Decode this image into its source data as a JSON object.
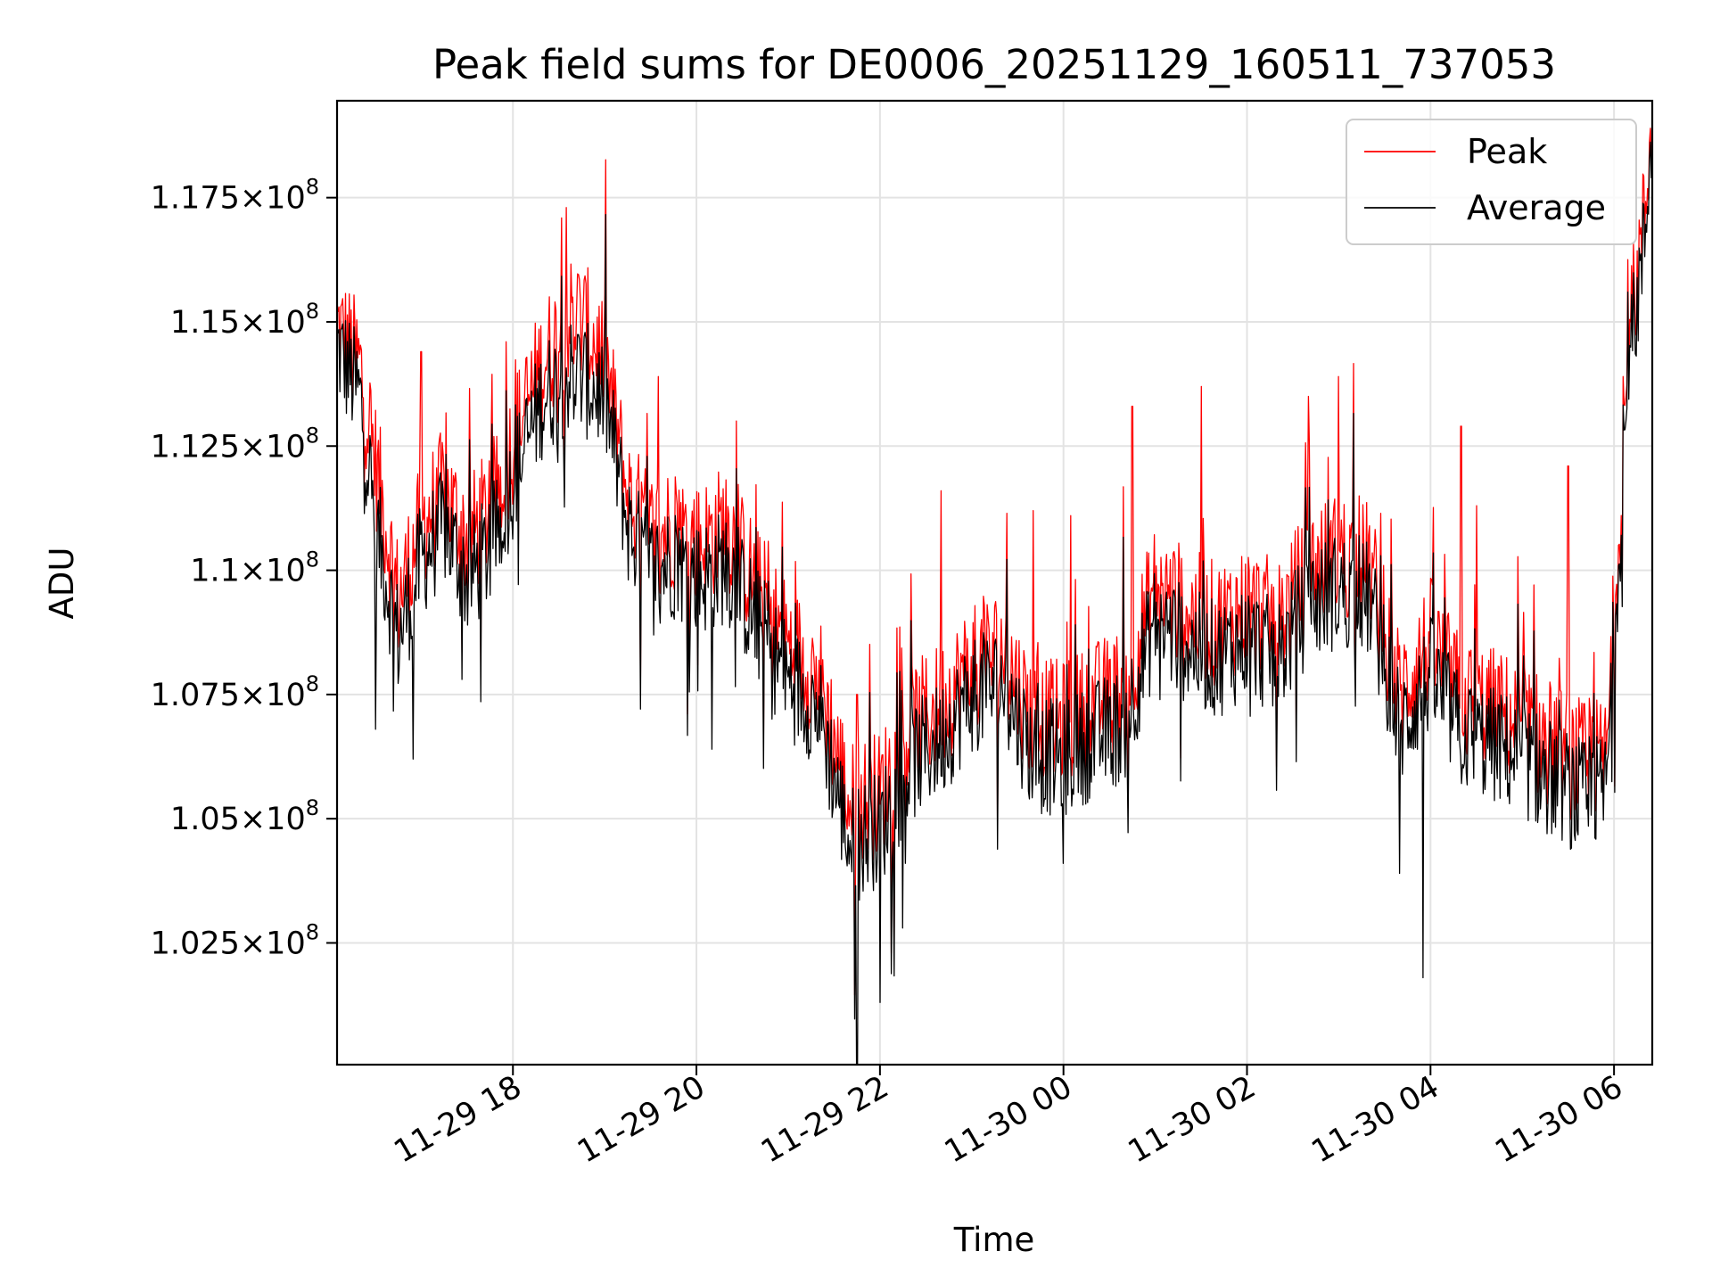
{
  "chart_data": {
    "type": "line",
    "title": "Peak field sums for DE0006_20251129_160511_737053",
    "xlabel": "Time",
    "ylabel": "ADU",
    "x_start": "2025-11-29 16:05",
    "x_end": "2025-11-30 06:25",
    "ylim": [
      100050000,
      119450000
    ],
    "grid": true,
    "legend_position": "top-right",
    "x_ticks": [
      {
        "value": "2025-11-29 18:00",
        "label": "11-29 18"
      },
      {
        "value": "2025-11-29 20:00",
        "label": "11-29 20"
      },
      {
        "value": "2025-11-29 22:00",
        "label": "11-29 22"
      },
      {
        "value": "2025-11-30 00:00",
        "label": "11-30 00"
      },
      {
        "value": "2025-11-30 02:00",
        "label": "11-30 02"
      },
      {
        "value": "2025-11-30 04:00",
        "label": "11-30 04"
      },
      {
        "value": "2025-11-30 06:00",
        "label": "11-30 06"
      }
    ],
    "y_ticks": [
      {
        "value": 102500000,
        "mantissa": "1.025",
        "exponent": "8"
      },
      {
        "value": 105000000,
        "mantissa": "1.05",
        "exponent": "8"
      },
      {
        "value": 107500000,
        "mantissa": "1.075",
        "exponent": "8"
      },
      {
        "value": 110000000,
        "mantissa": "1.1",
        "exponent": "8"
      },
      {
        "value": 112500000,
        "mantissa": "1.125",
        "exponent": "8"
      },
      {
        "value": 115000000,
        "mantissa": "1.15",
        "exponent": "8"
      },
      {
        "value": 117500000,
        "mantissa": "1.175",
        "exponent": "8"
      }
    ],
    "series": [
      {
        "name": "Peak",
        "color": "#ff0000",
        "points": [
          [
            "2025-11-29 16:05",
            114900000
          ],
          [
            "2025-11-29 16:20",
            114100000
          ],
          [
            "2025-11-29 16:30",
            112200000
          ],
          [
            "2025-11-29 16:45",
            109400000
          ],
          [
            "2025-11-29 17:00",
            110900000
          ],
          [
            "2025-11-29 17:15",
            111600000
          ],
          [
            "2025-11-29 17:30",
            110600000
          ],
          [
            "2025-11-29 17:45",
            111200000
          ],
          [
            "2025-11-29 18:00",
            112600000
          ],
          [
            "2025-11-29 18:20",
            114200000
          ],
          [
            "2025-11-29 18:40",
            115200000
          ],
          [
            "2025-11-29 19:00",
            114300000
          ],
          [
            "2025-11-29 19:15",
            111500000
          ],
          [
            "2025-11-29 19:30",
            110700000
          ],
          [
            "2025-11-29 19:45",
            110900000
          ],
          [
            "2025-11-29 20:00",
            110500000
          ],
          [
            "2025-11-29 20:20",
            110900000
          ],
          [
            "2025-11-29 20:40",
            109600000
          ],
          [
            "2025-11-29 21:00",
            108500000
          ],
          [
            "2025-11-29 21:20",
            107900000
          ],
          [
            "2025-11-29 21:40",
            105300000
          ],
          [
            "2025-11-29 22:00",
            105500000
          ],
          [
            "2025-11-29 22:20",
            106800000
          ],
          [
            "2025-11-29 22:40",
            107300000
          ],
          [
            "2025-11-29 23:00",
            108100000
          ],
          [
            "2025-11-29 23:20",
            108400000
          ],
          [
            "2025-11-29 23:40",
            107000000
          ],
          [
            "2025-11-30 00:00",
            106900000
          ],
          [
            "2025-11-30 00:20",
            107300000
          ],
          [
            "2025-11-30 00:40",
            107600000
          ],
          [
            "2025-11-30 01:00",
            109700000
          ],
          [
            "2025-11-30 01:20",
            109200000
          ],
          [
            "2025-11-30 01:40",
            108900000
          ],
          [
            "2025-11-30 02:00",
            109300000
          ],
          [
            "2025-11-30 02:20",
            108900000
          ],
          [
            "2025-11-30 02:40",
            110000000
          ],
          [
            "2025-11-30 03:00",
            110300000
          ],
          [
            "2025-11-30 03:20",
            110100000
          ],
          [
            "2025-11-30 03:40",
            107500000
          ],
          [
            "2025-11-30 04:00",
            108600000
          ],
          [
            "2025-11-30 04:20",
            107400000
          ],
          [
            "2025-11-30 04:40",
            107200000
          ],
          [
            "2025-11-30 05:00",
            106900000
          ],
          [
            "2025-11-30 05:20",
            106500000
          ],
          [
            "2025-11-30 05:40",
            106100000
          ],
          [
            "2025-11-30 05:55",
            106200000
          ],
          [
            "2025-11-30 06:00",
            109100000
          ],
          [
            "2025-11-30 06:10",
            114700000
          ],
          [
            "2025-11-30 06:20",
            117100000
          ],
          [
            "2025-11-30 06:25",
            119400000
          ]
        ],
        "spikes": [
          [
            "2025-11-29 18:35",
            117300000
          ],
          [
            "2025-11-29 17:00",
            114400000
          ],
          [
            "2025-11-29 19:35",
            113900000
          ],
          [
            "2025-11-29 21:45",
            107500000
          ],
          [
            "2025-11-29 22:40",
            111600000
          ],
          [
            "2025-11-29 23:40",
            111200000
          ],
          [
            "2025-11-30 00:45",
            113300000
          ],
          [
            "2025-11-30 01:30",
            113700000
          ],
          [
            "2025-11-30 02:40",
            113500000
          ],
          [
            "2025-11-30 03:00",
            113900000
          ],
          [
            "2025-11-30 04:20",
            112900000
          ],
          [
            "2025-11-30 05:30",
            112100000
          ],
          [
            "2025-11-30 00:05",
            111100000
          ],
          [
            "2025-11-30 04:30",
            111300000
          ]
        ]
      },
      {
        "name": "Average",
        "color": "#000000",
        "points": [
          [
            "2025-11-29 16:05",
            114500000
          ],
          [
            "2025-11-29 16:20",
            113500000
          ],
          [
            "2025-11-29 16:30",
            111000000
          ],
          [
            "2025-11-29 16:45",
            108600000
          ],
          [
            "2025-11-29 17:00",
            110200000
          ],
          [
            "2025-11-29 17:15",
            110900000
          ],
          [
            "2025-11-29 17:30",
            109800000
          ],
          [
            "2025-11-29 17:45",
            110400000
          ],
          [
            "2025-11-29 18:00",
            111800000
          ],
          [
            "2025-11-29 18:20",
            113500000
          ],
          [
            "2025-11-29 18:40",
            114000000
          ],
          [
            "2025-11-29 19:00",
            113500000
          ],
          [
            "2025-11-29 19:15",
            110900000
          ],
          [
            "2025-11-29 19:30",
            110000000
          ],
          [
            "2025-11-29 19:45",
            110200000
          ],
          [
            "2025-11-29 20:00",
            109800000
          ],
          [
            "2025-11-29 20:20",
            110100000
          ],
          [
            "2025-11-29 20:40",
            108900000
          ],
          [
            "2025-11-29 21:00",
            107800000
          ],
          [
            "2025-11-29 21:20",
            107200000
          ],
          [
            "2025-11-29 21:40",
            104500000
          ],
          [
            "2025-11-29 22:00",
            104800000
          ],
          [
            "2025-11-29 22:20",
            106100000
          ],
          [
            "2025-11-29 22:40",
            106600000
          ],
          [
            "2025-11-29 23:00",
            107500000
          ],
          [
            "2025-11-29 23:20",
            107700000
          ],
          [
            "2025-11-29 23:40",
            106300000
          ],
          [
            "2025-11-30 00:00",
            106200000
          ],
          [
            "2025-11-30 00:20",
            106600000
          ],
          [
            "2025-11-30 00:40",
            106900000
          ],
          [
            "2025-11-30 01:00",
            109000000
          ],
          [
            "2025-11-30 01:20",
            108500000
          ],
          [
            "2025-11-30 01:40",
            108200000
          ],
          [
            "2025-11-30 02:00",
            108600000
          ],
          [
            "2025-11-30 02:20",
            108200000
          ],
          [
            "2025-11-30 02:40",
            109300000
          ],
          [
            "2025-11-30 03:00",
            109600000
          ],
          [
            "2025-11-30 03:20",
            109400000
          ],
          [
            "2025-11-30 03:40",
            106800000
          ],
          [
            "2025-11-30 04:00",
            107900000
          ],
          [
            "2025-11-30 04:20",
            106700000
          ],
          [
            "2025-11-30 04:40",
            106500000
          ],
          [
            "2025-11-30 05:00",
            106200000
          ],
          [
            "2025-11-30 05:20",
            105800000
          ],
          [
            "2025-11-30 05:40",
            105400000
          ],
          [
            "2025-11-30 05:55",
            105600000
          ],
          [
            "2025-11-30 06:00",
            108700000
          ],
          [
            "2025-11-30 06:10",
            114200000
          ],
          [
            "2025-11-30 06:20",
            116600000
          ],
          [
            "2025-11-30 06:25",
            119200000
          ]
        ],
        "dips": [
          [
            "2025-11-29 21:45",
            100050000
          ],
          [
            "2025-11-29 22:00",
            101300000
          ],
          [
            "2025-11-29 16:30",
            106800000
          ],
          [
            "2025-11-29 16:55",
            106200000
          ],
          [
            "2025-11-30 03:55",
            101800000
          ],
          [
            "2025-11-30 03:40",
            103900000
          ],
          [
            "2025-11-29 20:10",
            106400000
          ],
          [
            "2025-11-30 00:00",
            104100000
          ],
          [
            "2025-11-29 22:15",
            102800000
          ]
        ]
      }
    ]
  }
}
